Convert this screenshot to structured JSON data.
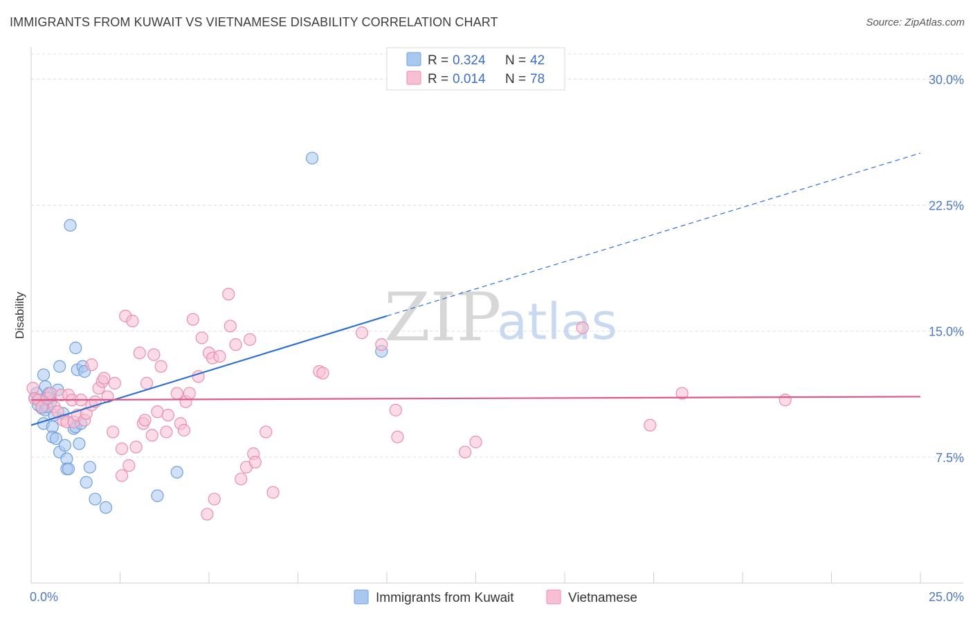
{
  "header": {
    "title": "IMMIGRANTS FROM KUWAIT VS VIETNAMESE DISABILITY CORRELATION CHART",
    "source": "Source: ZipAtlas.com"
  },
  "watermark": {
    "zip": "ZIP",
    "atlas": "atlas"
  },
  "legend": {
    "rows": [
      {
        "r_label": "R =",
        "r_value": "0.324",
        "n_label": "N =",
        "n_value": "42",
        "color": "#a9c8f0",
        "stroke": "#6f9fdb"
      },
      {
        "r_label": "R =",
        "r_value": "0.014",
        "n_label": "N =",
        "n_value": "78",
        "color": "#f7bfd2",
        "stroke": "#e98db0"
      }
    ]
  },
  "bottom_legend": {
    "items": [
      {
        "label": "Immigrants from Kuwait",
        "color": "#a9c8f0",
        "stroke": "#6f9fdb"
      },
      {
        "label": "Vietnamese",
        "color": "#f7bfd2",
        "stroke": "#e98db0"
      }
    ]
  },
  "chart_data": {
    "type": "scatter",
    "title": "IMMIGRANTS FROM KUWAIT VS VIETNAMESE DISABILITY CORRELATION CHART",
    "ylabel": "Disability",
    "xlabel": "",
    "xlim": [
      0,
      25
    ],
    "ylim": [
      0,
      31.5
    ],
    "x_tick_labels": [
      {
        "value": 0,
        "label": "0.0%"
      },
      {
        "value": 25,
        "label": "25.0%"
      }
    ],
    "y_tick_labels": [
      {
        "value": 7.5,
        "label": "7.5%"
      },
      {
        "value": 15.0,
        "label": "15.0%"
      },
      {
        "value": 22.5,
        "label": "22.5%"
      },
      {
        "value": 30.0,
        "label": "30.0%"
      }
    ],
    "grid": "horizontal dashed",
    "series": [
      {
        "name": "Immigrants from Kuwait",
        "color": "#a9c8f0",
        "stroke": "#6f9fdb",
        "trend": {
          "x0": 0,
          "y0": 9.4,
          "x1": 10.0,
          "y1": 15.9,
          "dashed_to_x": 25.0,
          "dashed_to_y": 25.6,
          "color": "#2f6fce"
        },
        "points": [
          [
            0.1,
            11.0
          ],
          [
            0.2,
            10.6
          ],
          [
            0.25,
            10.9
          ],
          [
            0.3,
            10.4
          ],
          [
            0.35,
            9.5
          ],
          [
            0.4,
            10.3
          ],
          [
            0.35,
            12.4
          ],
          [
            0.4,
            11.7
          ],
          [
            0.5,
            11.0
          ],
          [
            0.5,
            11.3
          ],
          [
            0.55,
            10.8
          ],
          [
            0.6,
            9.3
          ],
          [
            0.6,
            8.7
          ],
          [
            0.65,
            10.0
          ],
          [
            0.7,
            8.6
          ],
          [
            0.75,
            11.5
          ],
          [
            0.8,
            7.8
          ],
          [
            0.8,
            12.9
          ],
          [
            0.9,
            10.1
          ],
          [
            0.95,
            8.2
          ],
          [
            1.0,
            7.4
          ],
          [
            1.0,
            6.8
          ],
          [
            1.05,
            6.8
          ],
          [
            1.1,
            21.3
          ],
          [
            1.2,
            9.2
          ],
          [
            1.25,
            9.3
          ],
          [
            1.25,
            14.0
          ],
          [
            1.3,
            12.7
          ],
          [
            1.35,
            8.3
          ],
          [
            1.4,
            9.5
          ],
          [
            1.45,
            12.9
          ],
          [
            1.5,
            12.6
          ],
          [
            1.55,
            6.0
          ],
          [
            1.65,
            6.9
          ],
          [
            1.8,
            5.0
          ],
          [
            2.1,
            4.5
          ],
          [
            3.55,
            5.2
          ],
          [
            4.1,
            6.6
          ],
          [
            7.9,
            25.3
          ],
          [
            9.85,
            13.8
          ],
          [
            0.15,
            11.3
          ],
          [
            0.45,
            10.5
          ]
        ]
      },
      {
        "name": "Vietnamese",
        "color": "#f7bfd2",
        "stroke": "#e98db0",
        "trend": {
          "x0": 0,
          "y0": 10.9,
          "x1": 25.0,
          "y1": 11.1,
          "color": "#e0578a"
        },
        "points": [
          [
            0.05,
            11.6
          ],
          [
            0.1,
            11.0
          ],
          [
            0.2,
            10.9
          ],
          [
            0.3,
            10.5
          ],
          [
            0.45,
            11.0
          ],
          [
            0.55,
            11.3
          ],
          [
            0.65,
            10.5
          ],
          [
            0.75,
            10.2
          ],
          [
            0.85,
            11.2
          ],
          [
            0.9,
            9.7
          ],
          [
            1.0,
            9.6
          ],
          [
            1.05,
            11.2
          ],
          [
            1.15,
            10.9
          ],
          [
            1.2,
            9.6
          ],
          [
            1.3,
            10.0
          ],
          [
            1.4,
            10.9
          ],
          [
            1.5,
            9.7
          ],
          [
            1.55,
            10.1
          ],
          [
            1.7,
            13.0
          ],
          [
            1.7,
            10.6
          ],
          [
            1.8,
            10.8
          ],
          [
            1.9,
            11.6
          ],
          [
            2.0,
            12.0
          ],
          [
            2.05,
            12.2
          ],
          [
            2.15,
            11.1
          ],
          [
            2.3,
            9.0
          ],
          [
            2.35,
            11.9
          ],
          [
            2.55,
            8.0
          ],
          [
            2.55,
            6.4
          ],
          [
            2.65,
            15.9
          ],
          [
            2.75,
            7.0
          ],
          [
            2.85,
            15.6
          ],
          [
            2.95,
            8.1
          ],
          [
            3.05,
            13.7
          ],
          [
            3.15,
            9.5
          ],
          [
            3.2,
            9.7
          ],
          [
            3.25,
            11.9
          ],
          [
            3.4,
            8.8
          ],
          [
            3.45,
            13.6
          ],
          [
            3.55,
            10.2
          ],
          [
            3.65,
            12.9
          ],
          [
            3.8,
            9.0
          ],
          [
            3.85,
            10.0
          ],
          [
            4.1,
            11.3
          ],
          [
            4.2,
            9.5
          ],
          [
            4.3,
            9.1
          ],
          [
            4.35,
            10.8
          ],
          [
            4.45,
            11.3
          ],
          [
            4.55,
            15.7
          ],
          [
            4.7,
            12.3
          ],
          [
            4.8,
            14.6
          ],
          [
            4.95,
            4.1
          ],
          [
            5.0,
            13.7
          ],
          [
            5.1,
            13.4
          ],
          [
            5.15,
            5.0
          ],
          [
            5.3,
            13.5
          ],
          [
            5.55,
            17.2
          ],
          [
            5.6,
            15.3
          ],
          [
            5.75,
            14.2
          ],
          [
            5.9,
            6.2
          ],
          [
            6.05,
            6.9
          ],
          [
            6.15,
            14.5
          ],
          [
            6.25,
            7.7
          ],
          [
            6.3,
            7.2
          ],
          [
            6.6,
            9.0
          ],
          [
            6.8,
            5.4
          ],
          [
            8.1,
            12.6
          ],
          [
            8.2,
            12.5
          ],
          [
            9.3,
            14.9
          ],
          [
            9.85,
            14.2
          ],
          [
            10.25,
            10.3
          ],
          [
            10.3,
            8.7
          ],
          [
            12.2,
            7.8
          ],
          [
            12.5,
            8.4
          ],
          [
            15.5,
            15.2
          ],
          [
            17.4,
            9.4
          ],
          [
            18.3,
            11.3
          ],
          [
            21.2,
            10.9
          ]
        ]
      }
    ]
  }
}
